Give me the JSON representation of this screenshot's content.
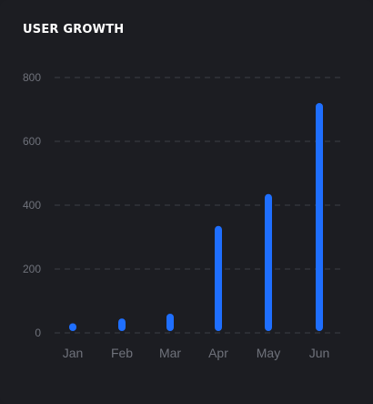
{
  "card": {
    "title": "USER GROWTH"
  },
  "colors": {
    "background": "#1c1d22",
    "bar": "#1f6fff",
    "grid": "#3c3e45",
    "label": "#6f727b",
    "title": "#ffffff"
  },
  "chart_data": {
    "type": "bar",
    "title": "USER GROWTH",
    "categories": [
      "Jan",
      "Feb",
      "Mar",
      "Apr",
      "May",
      "Jun"
    ],
    "values": [
      30,
      45,
      60,
      335,
      435,
      720
    ],
    "ylim": [
      0,
      800
    ],
    "yticks": [
      0,
      200,
      400,
      600,
      800
    ],
    "ytick_labels": [
      "0",
      "200",
      "400",
      "600",
      "800"
    ],
    "xlabel": "",
    "ylabel": "",
    "grid": true,
    "legend": "none"
  }
}
